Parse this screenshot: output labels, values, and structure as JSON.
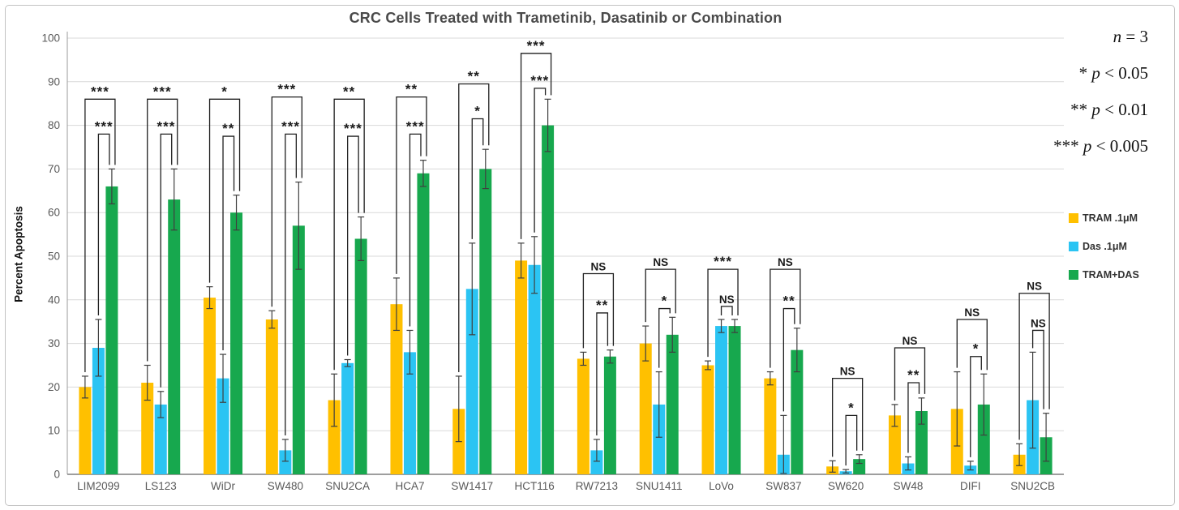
{
  "figure": {
    "title": "CRC Cells Treated with Trametinib, Dasatinib or Combination",
    "y_axis_title": "Percent Apoptosis",
    "stats_annotations": [
      "n = 3",
      "* p < 0.05",
      "** p < 0.01",
      "*** p < 0.005"
    ]
  },
  "chart_data": {
    "type": "bar",
    "title": "CRC Cells Treated with Trametinib, Dasatinib or Combination",
    "xlabel": "",
    "ylabel": "Percent Apoptosis",
    "ylim": [
      0,
      100
    ],
    "ytick_step": 10,
    "grid": true,
    "legend_position": "right",
    "sample_size_note": "n = 3",
    "p_value_key": [
      "* p < 0.05",
      "** p < 0.01",
      "*** p < 0.005"
    ],
    "categories": [
      "LIM2099",
      "LS123",
      "WiDr",
      "SW480",
      "SNU2CA",
      "HCA7",
      "SW1417",
      "HCT116",
      "RW7213",
      "SNU1411",
      "LoVo",
      "SW837",
      "SW620",
      "SW48",
      "DIFI",
      "SNU2CB"
    ],
    "series": [
      {
        "name": "TRAM .1μM",
        "color": "#FFC000",
        "values": [
          20,
          21,
          40.5,
          35.5,
          17,
          39,
          15,
          49,
          26.5,
          30,
          25,
          22,
          1.8,
          13.5,
          15,
          4.5
        ],
        "errors": [
          2.5,
          4,
          2.5,
          2,
          6,
          6,
          7.5,
          4,
          1.5,
          4,
          1,
          1.5,
          1.3,
          2.5,
          8.5,
          2.5
        ]
      },
      {
        "name": "Das .1μM",
        "color": "#2BC4F3",
        "values": [
          29,
          16,
          22,
          5.5,
          25.5,
          28,
          42.5,
          48,
          5.5,
          16,
          34,
          4.5,
          0.7,
          2.5,
          2,
          17
        ],
        "errors": [
          6.5,
          3,
          5.5,
          2.5,
          0.8,
          5,
          10.5,
          6.5,
          2.5,
          7.5,
          1.5,
          9,
          0.4,
          1.5,
          1,
          11
        ]
      },
      {
        "name": "TRAM+DAS",
        "color": "#17A84E",
        "values": [
          66,
          63,
          60,
          57,
          54,
          69,
          70,
          80,
          27,
          32,
          34,
          28.5,
          3.5,
          14.5,
          16,
          8.5
        ],
        "errors": [
          4,
          7,
          4,
          10,
          5,
          3,
          4.5,
          6,
          1.5,
          4,
          1.5,
          5,
          1,
          3,
          7,
          5.5
        ]
      }
    ],
    "significance": [
      {
        "tram_vs_combo": {
          "label": "***",
          "height": 86
        },
        "das_vs_combo": {
          "label": "***",
          "height": 78
        }
      },
      {
        "tram_vs_combo": {
          "label": "***",
          "height": 86
        },
        "das_vs_combo": {
          "label": "***",
          "height": 78
        }
      },
      {
        "tram_vs_combo": {
          "label": "*",
          "height": 86
        },
        "das_vs_combo": {
          "label": "**",
          "height": 77.5
        }
      },
      {
        "tram_vs_combo": {
          "label": "***",
          "height": 86.5
        },
        "das_vs_combo": {
          "label": "***",
          "height": 78
        }
      },
      {
        "tram_vs_combo": {
          "label": "**",
          "height": 86
        },
        "das_vs_combo": {
          "label": "***",
          "height": 77.5
        }
      },
      {
        "tram_vs_combo": {
          "label": "**",
          "height": 86.5
        },
        "das_vs_combo": {
          "label": "***",
          "height": 78
        }
      },
      {
        "tram_vs_combo": {
          "label": "**",
          "height": 89.5
        },
        "das_vs_combo": {
          "label": "*",
          "height": 81.5
        }
      },
      {
        "tram_vs_combo": {
          "label": "***",
          "height": 96.5
        },
        "das_vs_combo": {
          "label": "***",
          "height": 88.5
        }
      },
      {
        "tram_vs_combo": {
          "label": "NS",
          "height": 46
        },
        "das_vs_combo": {
          "label": "**",
          "height": 37
        }
      },
      {
        "tram_vs_combo": {
          "label": "NS",
          "height": 47
        },
        "das_vs_combo": {
          "label": "*",
          "height": 38
        }
      },
      {
        "tram_vs_combo": {
          "label": "***",
          "height": 47
        },
        "das_vs_combo": {
          "label": "NS",
          "height": 38.5
        }
      },
      {
        "tram_vs_combo": {
          "label": "NS",
          "height": 47
        },
        "das_vs_combo": {
          "label": "**",
          "height": 38
        }
      },
      {
        "tram_vs_combo": {
          "label": "NS",
          "height": 22
        },
        "das_vs_combo": {
          "label": "*",
          "height": 13.5
        }
      },
      {
        "tram_vs_combo": {
          "label": "NS",
          "height": 29
        },
        "das_vs_combo": {
          "label": "**",
          "height": 21
        }
      },
      {
        "tram_vs_combo": {
          "label": "NS",
          "height": 35.5
        },
        "das_vs_combo": {
          "label": "*",
          "height": 27
        }
      },
      {
        "tram_vs_combo": {
          "label": "NS",
          "height": 41.5
        },
        "das_vs_combo": {
          "label": "NS",
          "height": 33
        }
      }
    ],
    "colors": {
      "gridline": "#d9d9d9",
      "axis": "#9b9b9b",
      "error_bar": "#3f3f3f",
      "bracket": "#1f1f1f",
      "tick_label": "#595959",
      "title": "#4a4a4a"
    }
  }
}
